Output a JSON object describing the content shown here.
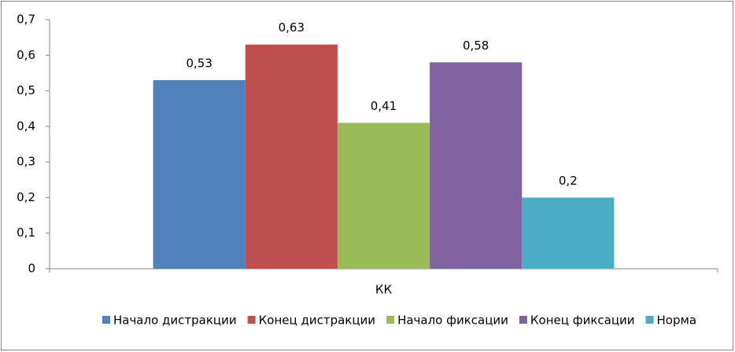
{
  "chart_data": {
    "type": "bar",
    "categories": [
      "КК"
    ],
    "series": [
      {
        "name": "Начало дистракции",
        "color": "#4f81bd",
        "values": [
          0.53
        ],
        "value_labels": [
          "0,53"
        ]
      },
      {
        "name": "Конец дистракции",
        "color": "#c0504d",
        "values": [
          0.63
        ],
        "value_labels": [
          "0,63"
        ]
      },
      {
        "name": "Начало фиксации",
        "color": "#9bbb59",
        "values": [
          0.41
        ],
        "value_labels": [
          "0,41"
        ]
      },
      {
        "name": "Конец фиксации",
        "color": "#8064a2",
        "values": [
          0.58
        ],
        "value_labels": [
          "0,58"
        ]
      },
      {
        "name": "Норма",
        "color": "#4bacc6",
        "values": [
          0.2
        ],
        "value_labels": [
          "0,2"
        ]
      }
    ],
    "ylim": [
      0,
      0.7
    ],
    "yticks": [
      0,
      {
        "value": 0.1,
        "label": "0,1"
      },
      {
        "value": 0.2,
        "label": "0,2"
      },
      {
        "value": 0.3,
        "label": "0,3"
      },
      {
        "value": 0.4,
        "label": "0,4"
      },
      {
        "value": 0.5,
        "label": "0,5"
      },
      {
        "value": 0.6,
        "label": "0,6"
      },
      {
        "value": 0.7,
        "label": "0,7"
      }
    ],
    "grid": false,
    "legend": "bottom"
  }
}
